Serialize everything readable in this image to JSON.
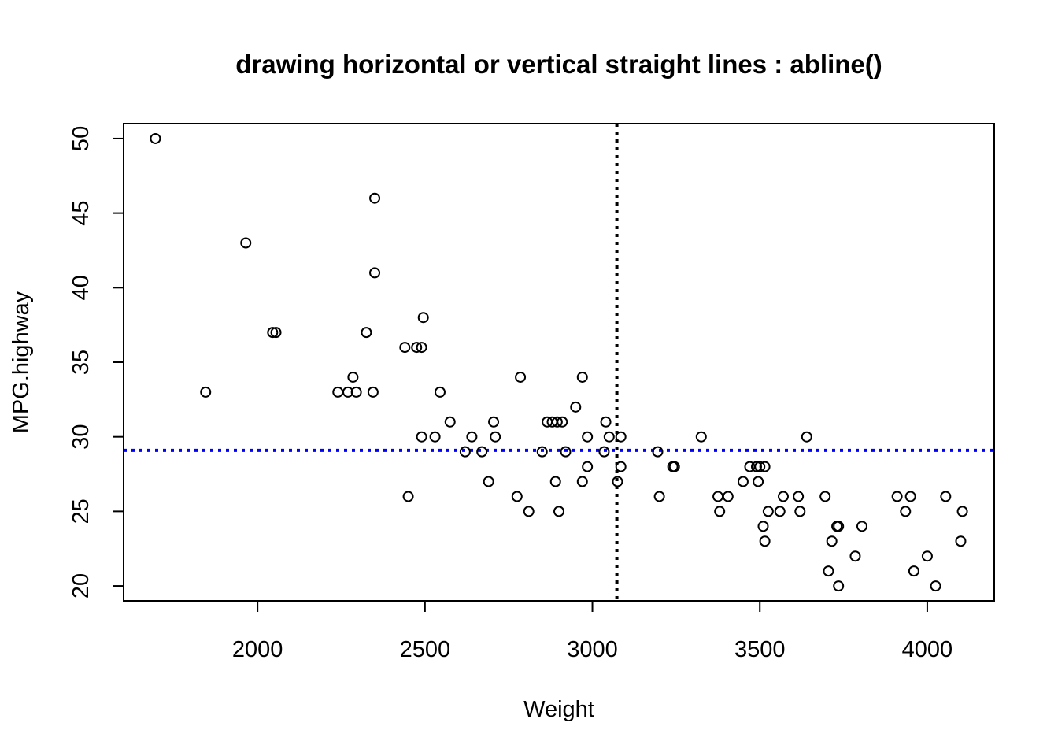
{
  "chart_data": {
    "type": "scatter",
    "title": "drawing horizontal or vertical straight lines : abline()",
    "xlabel": "Weight",
    "ylabel": "MPG.highway",
    "xlim": [
      1600,
      4200
    ],
    "ylim": [
      19,
      51
    ],
    "x_ticks": [
      2000,
      2500,
      3000,
      3500,
      4000
    ],
    "y_ticks": [
      20,
      25,
      30,
      35,
      40,
      45,
      50
    ],
    "grid": false,
    "reference_lines": [
      {
        "orientation": "vertical",
        "value": 3073,
        "style": "dotted",
        "color": "#000000"
      },
      {
        "orientation": "horizontal",
        "value": 29.09,
        "style": "dotted",
        "color": "#0000ff"
      }
    ],
    "points": [
      [
        1695,
        50
      ],
      [
        1845,
        33
      ],
      [
        1965,
        43
      ],
      [
        2045,
        37
      ],
      [
        2055,
        37
      ],
      [
        2240,
        33
      ],
      [
        2270,
        33
      ],
      [
        2285,
        34
      ],
      [
        2295,
        33
      ],
      [
        2325,
        37
      ],
      [
        2345,
        33
      ],
      [
        2350,
        46
      ],
      [
        2350,
        41
      ],
      [
        2440,
        36
      ],
      [
        2450,
        26
      ],
      [
        2475,
        36
      ],
      [
        2490,
        30
      ],
      [
        2490,
        36
      ],
      [
        2495,
        38
      ],
      [
        2530,
        30
      ],
      [
        2545,
        33
      ],
      [
        2575,
        31
      ],
      [
        2620,
        29
      ],
      [
        2640,
        30
      ],
      [
        2670,
        29
      ],
      [
        2690,
        27
      ],
      [
        2705,
        31
      ],
      [
        2710,
        30
      ],
      [
        2775,
        26
      ],
      [
        2785,
        34
      ],
      [
        2810,
        25
      ],
      [
        2850,
        29
      ],
      [
        2865,
        31
      ],
      [
        2880,
        31
      ],
      [
        2890,
        27
      ],
      [
        2895,
        31
      ],
      [
        2900,
        25
      ],
      [
        2910,
        31
      ],
      [
        2920,
        29
      ],
      [
        2950,
        32
      ],
      [
        2970,
        27
      ],
      [
        2970,
        34
      ],
      [
        2985,
        30
      ],
      [
        2985,
        28
      ],
      [
        3035,
        29
      ],
      [
        3040,
        31
      ],
      [
        3050,
        30
      ],
      [
        3075,
        27
      ],
      [
        3085,
        28
      ],
      [
        3085,
        30
      ],
      [
        3195,
        29
      ],
      [
        3200,
        26
      ],
      [
        3240,
        28
      ],
      [
        3245,
        28
      ],
      [
        3325,
        30
      ],
      [
        3375,
        26
      ],
      [
        3380,
        25
      ],
      [
        3405,
        26
      ],
      [
        3450,
        27
      ],
      [
        3470,
        28
      ],
      [
        3490,
        28
      ],
      [
        3495,
        27
      ],
      [
        3500,
        28
      ],
      [
        3510,
        24
      ],
      [
        3515,
        23
      ],
      [
        3515,
        28
      ],
      [
        3525,
        25
      ],
      [
        3560,
        25
      ],
      [
        3570,
        26
      ],
      [
        3615,
        26
      ],
      [
        3620,
        25
      ],
      [
        3640,
        30
      ],
      [
        3695,
        26
      ],
      [
        3705,
        21
      ],
      [
        3715,
        23
      ],
      [
        3730,
        24
      ],
      [
        3735,
        20
      ],
      [
        3735,
        24
      ],
      [
        3785,
        22
      ],
      [
        3805,
        24
      ],
      [
        3910,
        26
      ],
      [
        3935,
        25
      ],
      [
        3950,
        26
      ],
      [
        3960,
        21
      ],
      [
        4000,
        22
      ],
      [
        4025,
        20
      ],
      [
        4055,
        26
      ],
      [
        4100,
        23
      ],
      [
        4105,
        25
      ]
    ]
  }
}
